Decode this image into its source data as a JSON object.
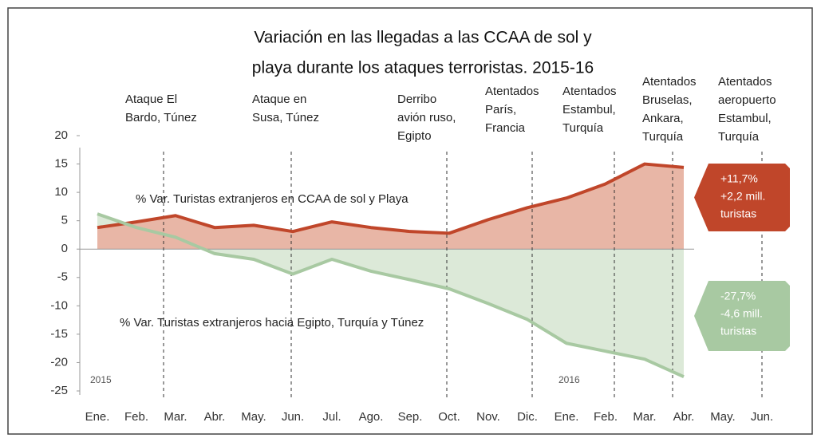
{
  "chart_data": {
    "type": "area",
    "title": [
      "Variación en las llegadas a las CCAA de sol y",
      "playa durante los ataques terroristas. 2015-16"
    ],
    "categories": [
      "Ene.",
      "Feb.",
      "Mar.",
      "Abr.",
      "May.",
      "Jun.",
      "Jul.",
      "Ago.",
      "Sep.",
      "Oct.",
      "Nov.",
      "Dic.",
      "Ene.",
      "Feb.",
      "Mar.",
      "Abr.",
      "May.",
      "Jun."
    ],
    "series": [
      {
        "name": "% Var. Turistas extranjeros en CCAA de sol y Playa",
        "color": "#c0462a",
        "fill": "#e8b6a6",
        "values": [
          3.8,
          4.8,
          5.9,
          3.8,
          4.2,
          3.1,
          4.8,
          3.8,
          3.1,
          2.8,
          5.2,
          7.3,
          9,
          11.5,
          15,
          14.4,
          null,
          null
        ]
      },
      {
        "name": "% Var. Turistas extranjeros hacia Egipto, Turquía y Túnez",
        "color": "#a8c9a2",
        "fill": "#dce9d8",
        "values": [
          6.2,
          3.8,
          2.1,
          -0.8,
          -1.8,
          -4.4,
          -1.8,
          -3.9,
          -5.4,
          -7,
          -9.6,
          -12.4,
          -16.6,
          -18,
          -19.4,
          -22.5,
          null,
          null
        ]
      }
    ],
    "ylim": [
      -25,
      20
    ],
    "yticks": [
      20,
      15,
      10,
      5,
      0,
      -5,
      -10,
      -15,
      -20,
      -25
    ],
    "events": [
      [
        "Ataque El",
        "Bardo, Túnez"
      ],
      [
        "Ataque en",
        "Susa, Túnez"
      ],
      [
        "Derribo",
        "avión ruso,",
        "Egipto"
      ],
      [
        "Atentados",
        "París,",
        "Francia"
      ],
      [
        "Atentados",
        "Estambul,",
        "Turquía"
      ],
      [
        "Atentados",
        "Bruselas,",
        "Ankara,",
        "Turquía"
      ],
      [
        "Atentados",
        "aeropuerto",
        "Estambul,",
        "Turquía"
      ]
    ],
    "callouts": [
      [
        "+11,7%",
        "+2,2 mill.",
        "turistas"
      ],
      [
        "-27,7%",
        "-4,6 mill.",
        "turistas"
      ]
    ],
    "year_labels": [
      "2015",
      "2016"
    ]
  }
}
